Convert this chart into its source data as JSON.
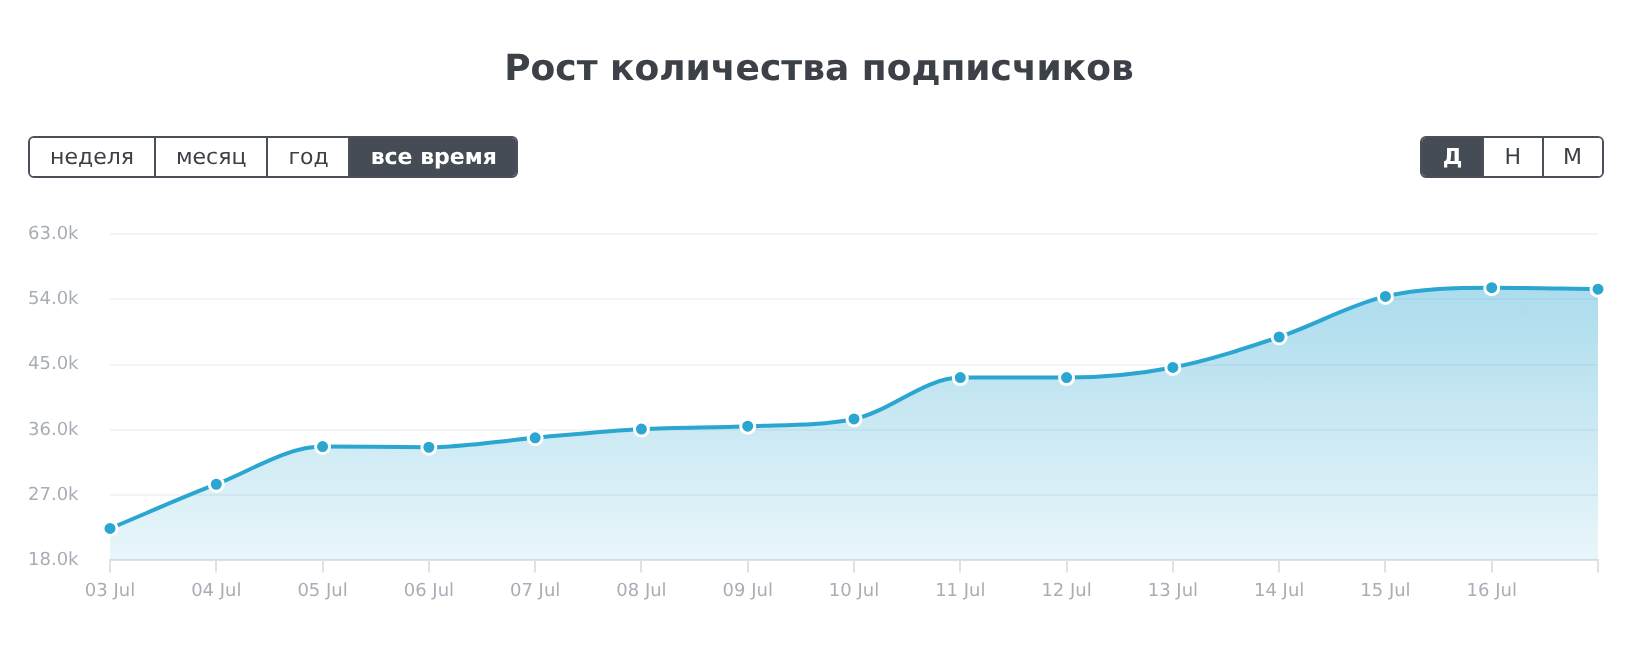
{
  "chart_data": {
    "type": "area",
    "title": "Рост количества подписчиков",
    "annotations": [
      "неделя",
      "месяц",
      "год",
      "все время",
      "Д",
      "Н",
      "М"
    ],
    "categories": [
      "03 Jul",
      "04 Jul",
      "05 Jul",
      "06 Jul",
      "07 Jul",
      "08 Jul",
      "09 Jul",
      "10 Jul",
      "11 Jul",
      "12 Jul",
      "13 Jul",
      "14 Jul",
      "15 Jul",
      "16 Jul",
      null
    ],
    "series": [
      {
        "color": "#2ba6d0",
        "values": [
          22400,
          28500,
          33700,
          33600,
          34900,
          36100,
          36500,
          37500,
          43200,
          43200,
          44600,
          48800,
          54400,
          55600,
          55400
        ]
      }
    ],
    "ylim": [
      18000,
      63000
    ],
    "yticks": [
      {
        "value": 18000,
        "label": "18.0k"
      },
      {
        "value": 27000,
        "label": "27.0k"
      },
      {
        "value": 36000,
        "label": "36.0k"
      },
      {
        "value": 45000,
        "label": "45.0k"
      },
      {
        "value": 54000,
        "label": "54.0k"
      },
      {
        "value": 63000,
        "label": "63.0k"
      }
    ],
    "grid": "y",
    "legend": false,
    "marker": "circle",
    "line_style": "solid"
  }
}
